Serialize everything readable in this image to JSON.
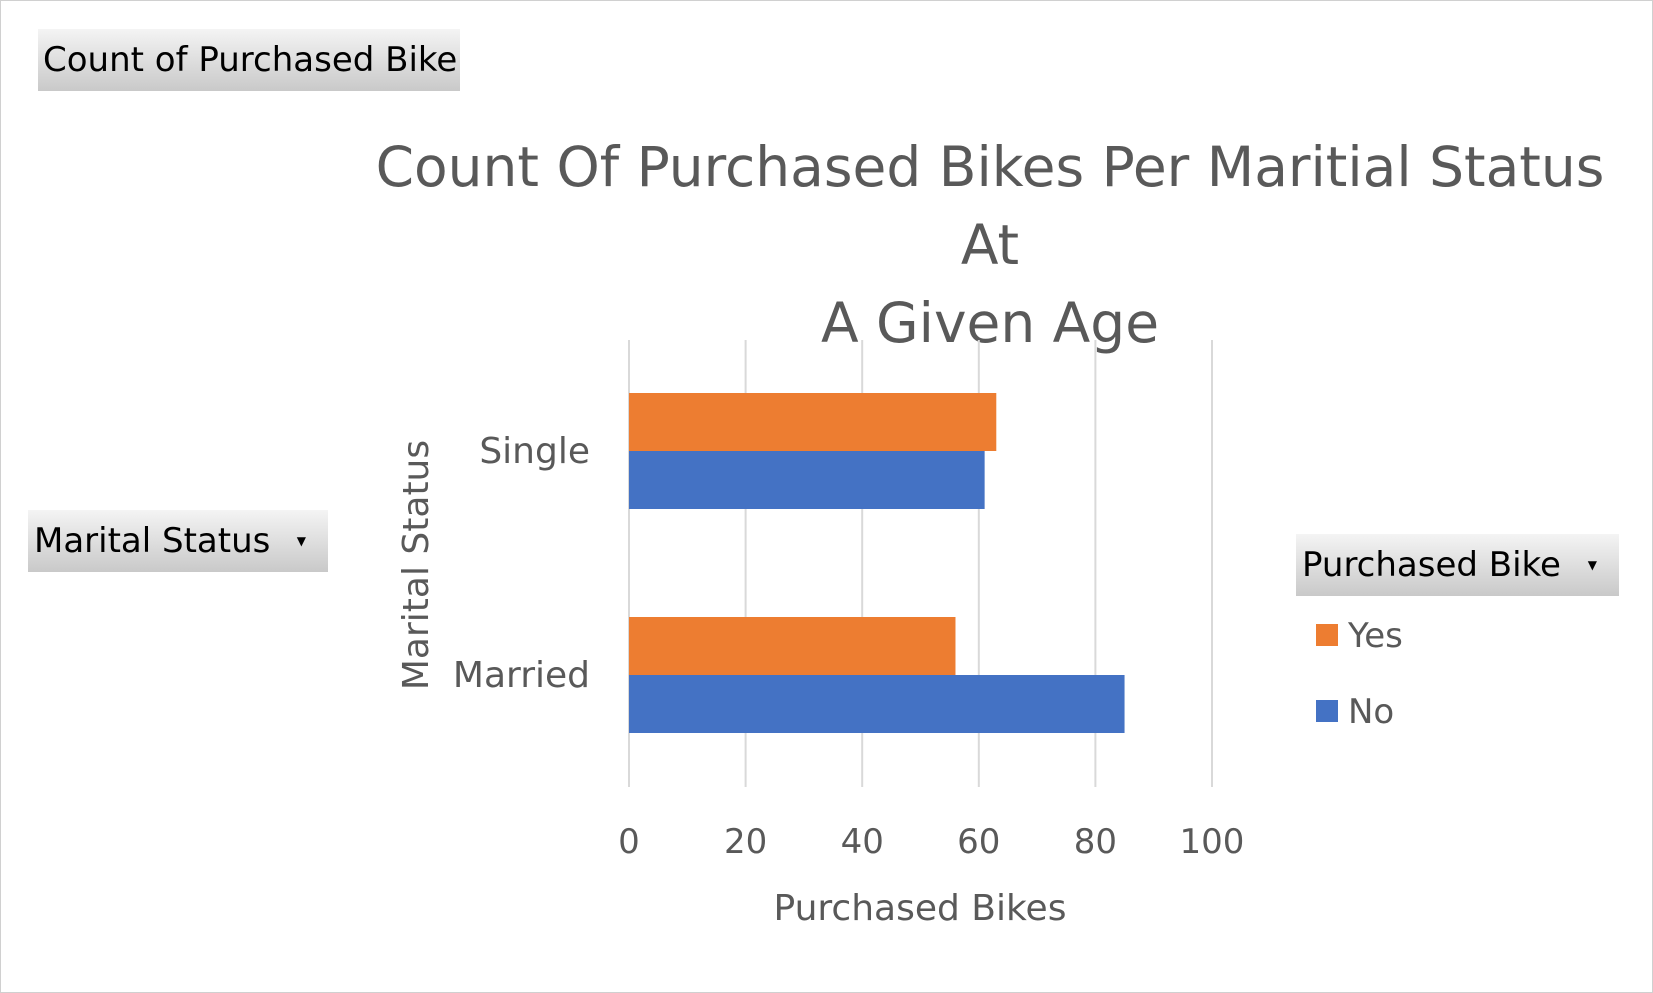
{
  "pivot_buttons": {
    "values_field": "Count of Purchased Bike",
    "row_field": "Marital Status",
    "legend_field": "Purchased Bike"
  },
  "colors": {
    "yes": "#ED7D31",
    "no": "#4472C4",
    "grid": "#d9d9d9"
  },
  "chart_data": {
    "type": "bar",
    "orientation": "horizontal",
    "title": "Count Of Purchased Bikes Per Maritial Status At A Given Age",
    "title_lines": [
      "Count Of Purchased Bikes Per Maritial Status At",
      "A Given Age"
    ],
    "xlabel": "Purchased Bikes",
    "ylabel": "Marital Status",
    "categories": [
      "Single",
      "Married"
    ],
    "series": [
      {
        "name": "Yes",
        "values": [
          63,
          56
        ]
      },
      {
        "name": "No",
        "values": [
          61,
          85
        ]
      }
    ],
    "xlim": [
      0,
      100
    ],
    "xticks": [
      "0",
      "20",
      "40",
      "60",
      "80",
      "100"
    ],
    "grid": true,
    "legend_position": "right"
  }
}
